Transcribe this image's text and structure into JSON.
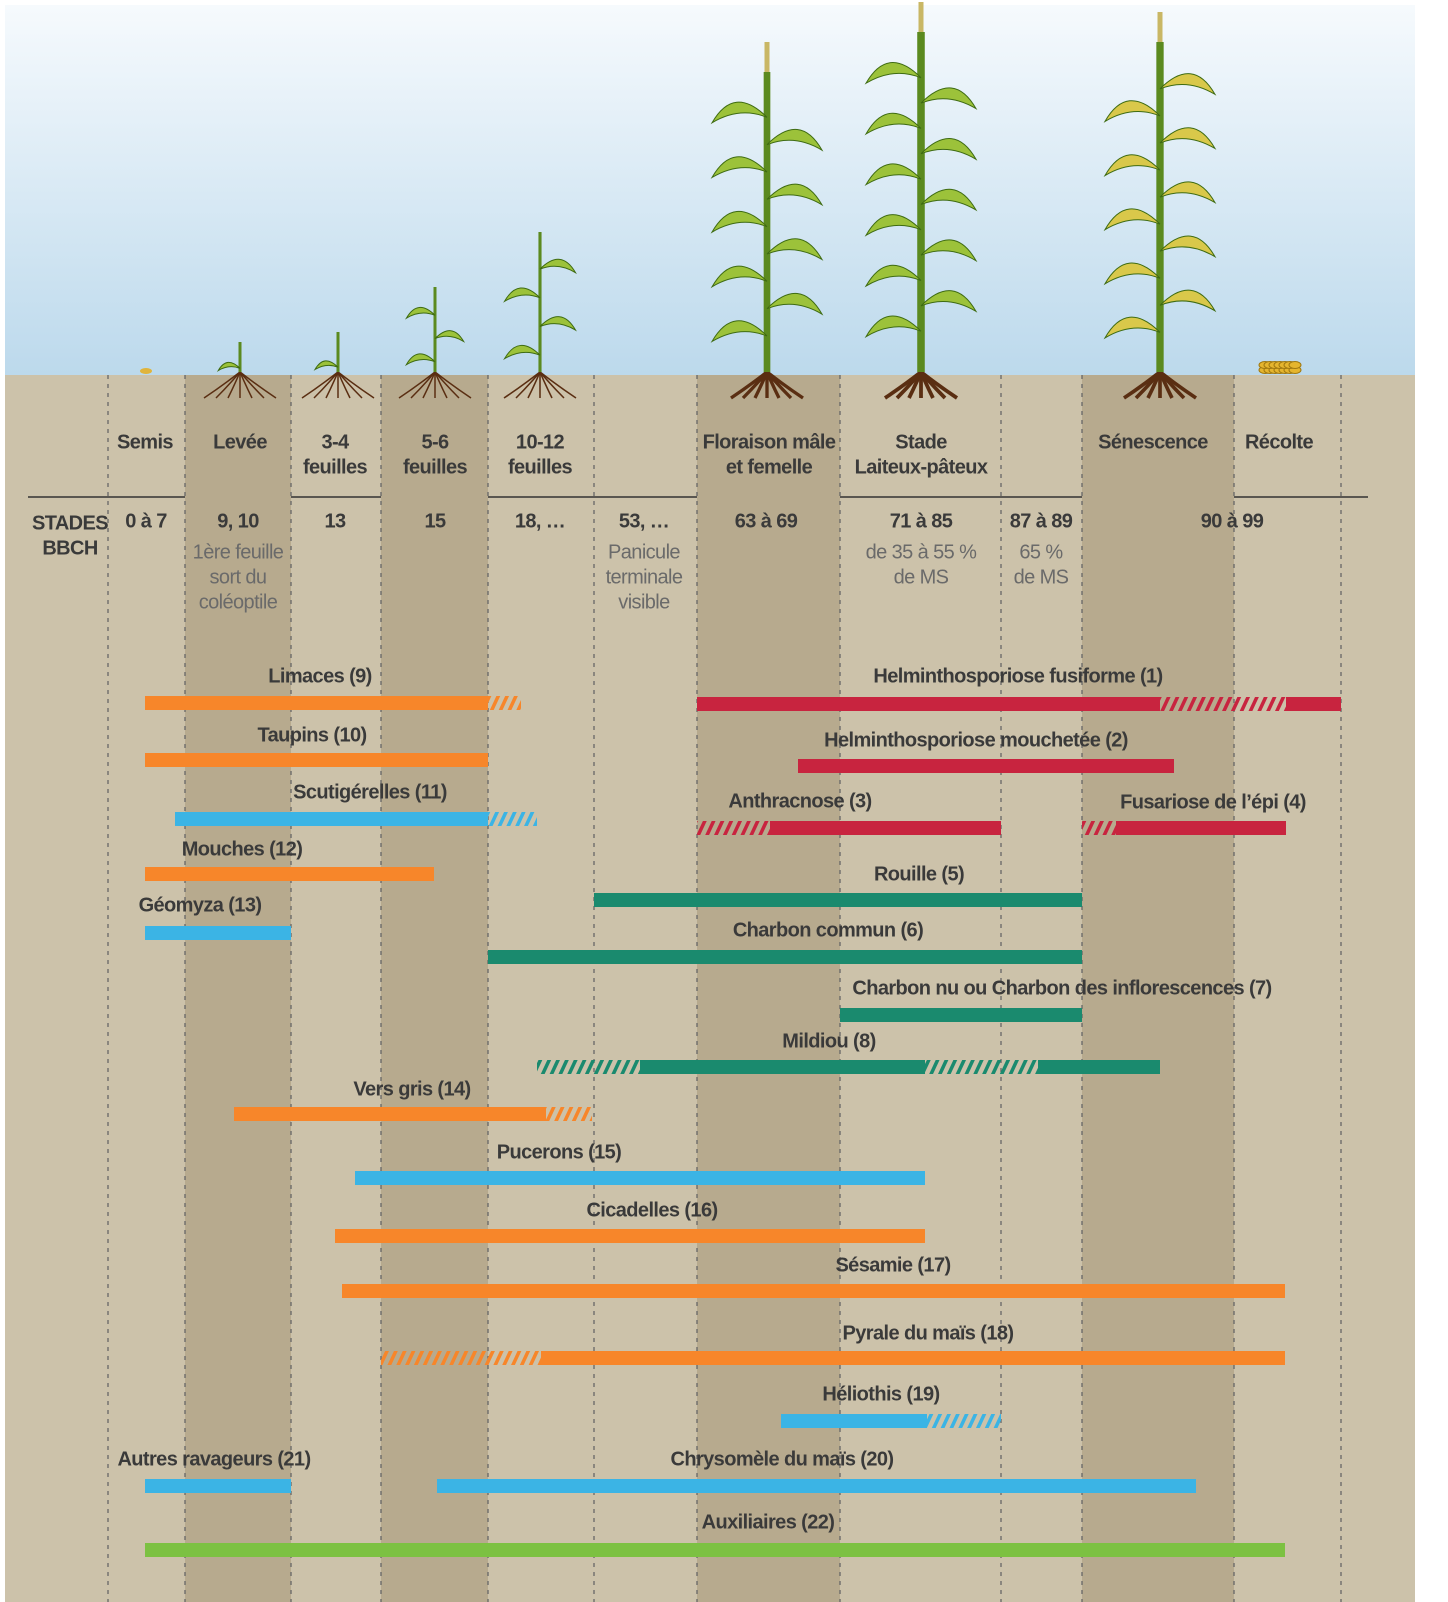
{
  "stages": [
    [
      "Semis"
    ],
    [
      "Levée"
    ],
    [
      "3-4",
      "feuilles"
    ],
    [
      "5-6",
      "feuilles"
    ],
    [
      "10-12",
      "feuilles"
    ],
    [
      "Floraison mâle",
      "et femelle"
    ],
    [
      "Stade",
      "Laiteux-pâteux"
    ],
    [
      "Sénescence"
    ],
    [
      "Récolte"
    ]
  ],
  "bbch": {
    "heading": [
      "STADES",
      "BBCH"
    ],
    "codes": [
      "0 à 7",
      "9, 10",
      "13",
      "15",
      "18, …",
      "53, …",
      "63 à 69",
      "71 à 85",
      "87 à 89",
      "90 à 99"
    ],
    "notes": [
      [
        "1ère feuille",
        "sort du",
        "coléoptile"
      ],
      [
        "Panicule",
        "terminale",
        "visible"
      ],
      [
        "de 35 à 55 %",
        "de MS"
      ],
      [
        "65 %",
        "de MS"
      ]
    ]
  },
  "threats": [
    "Limaces (9)",
    "Taupins (10)",
    "Scutigérelles (11)",
    "Mouches (12)",
    "Géomyza (13)",
    "Helminthosporiose fusiforme (1)",
    "Helminthosporiose mouchetée (2)",
    "Anthracnose (3)",
    "Fusariose de l’épi (4)",
    "Rouille (5)",
    "Charbon commun (6)",
    "Charbon nu ou Charbon des inflorescences (7)",
    "Mildiou (8)",
    "Vers gris (14)",
    "Pucerons (15)",
    "Cicadelles (16)",
    "Sésamie (17)",
    "Pyrale du maïs (18)",
    "Héliothis (19)",
    "Autres ravageurs (21)",
    "Chrysomèle du maïs (20)",
    "Auxiliaires (22)"
  ]
}
